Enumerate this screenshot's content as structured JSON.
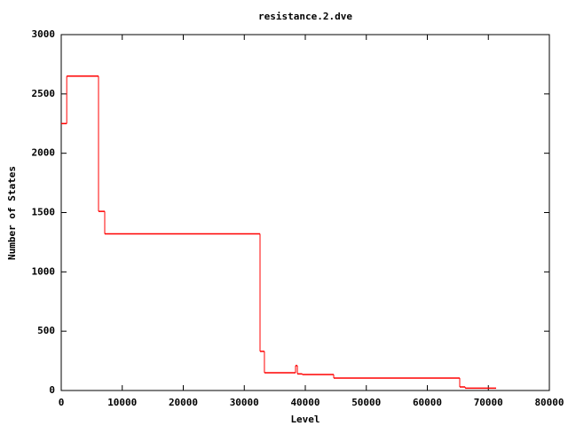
{
  "chart_data": {
    "type": "step",
    "title": "resistance.2.dve",
    "x_label": "Level",
    "y_label": "Number of States",
    "series": [
      {
        "color": "#ff0000",
        "x": [
          0,
          900,
          6109,
          7127,
          32582,
          33300,
          38400,
          38700,
          39500,
          44655,
          65309,
          66200,
          71273
        ],
        "values": [
          2250,
          2650,
          1510,
          1320,
          330,
          150,
          210,
          140,
          135,
          105,
          30,
          20,
          20
        ]
      }
    ],
    "xlim": [
      0,
      80000
    ],
    "xticks": [
      0,
      10000,
      20000,
      30000,
      40000,
      50000,
      60000,
      70000,
      80000
    ],
    "ylim": [
      0,
      3000
    ],
    "yticks": [
      0,
      500,
      1000,
      1500,
      2000,
      2500,
      3000
    ],
    "grid": false
  }
}
